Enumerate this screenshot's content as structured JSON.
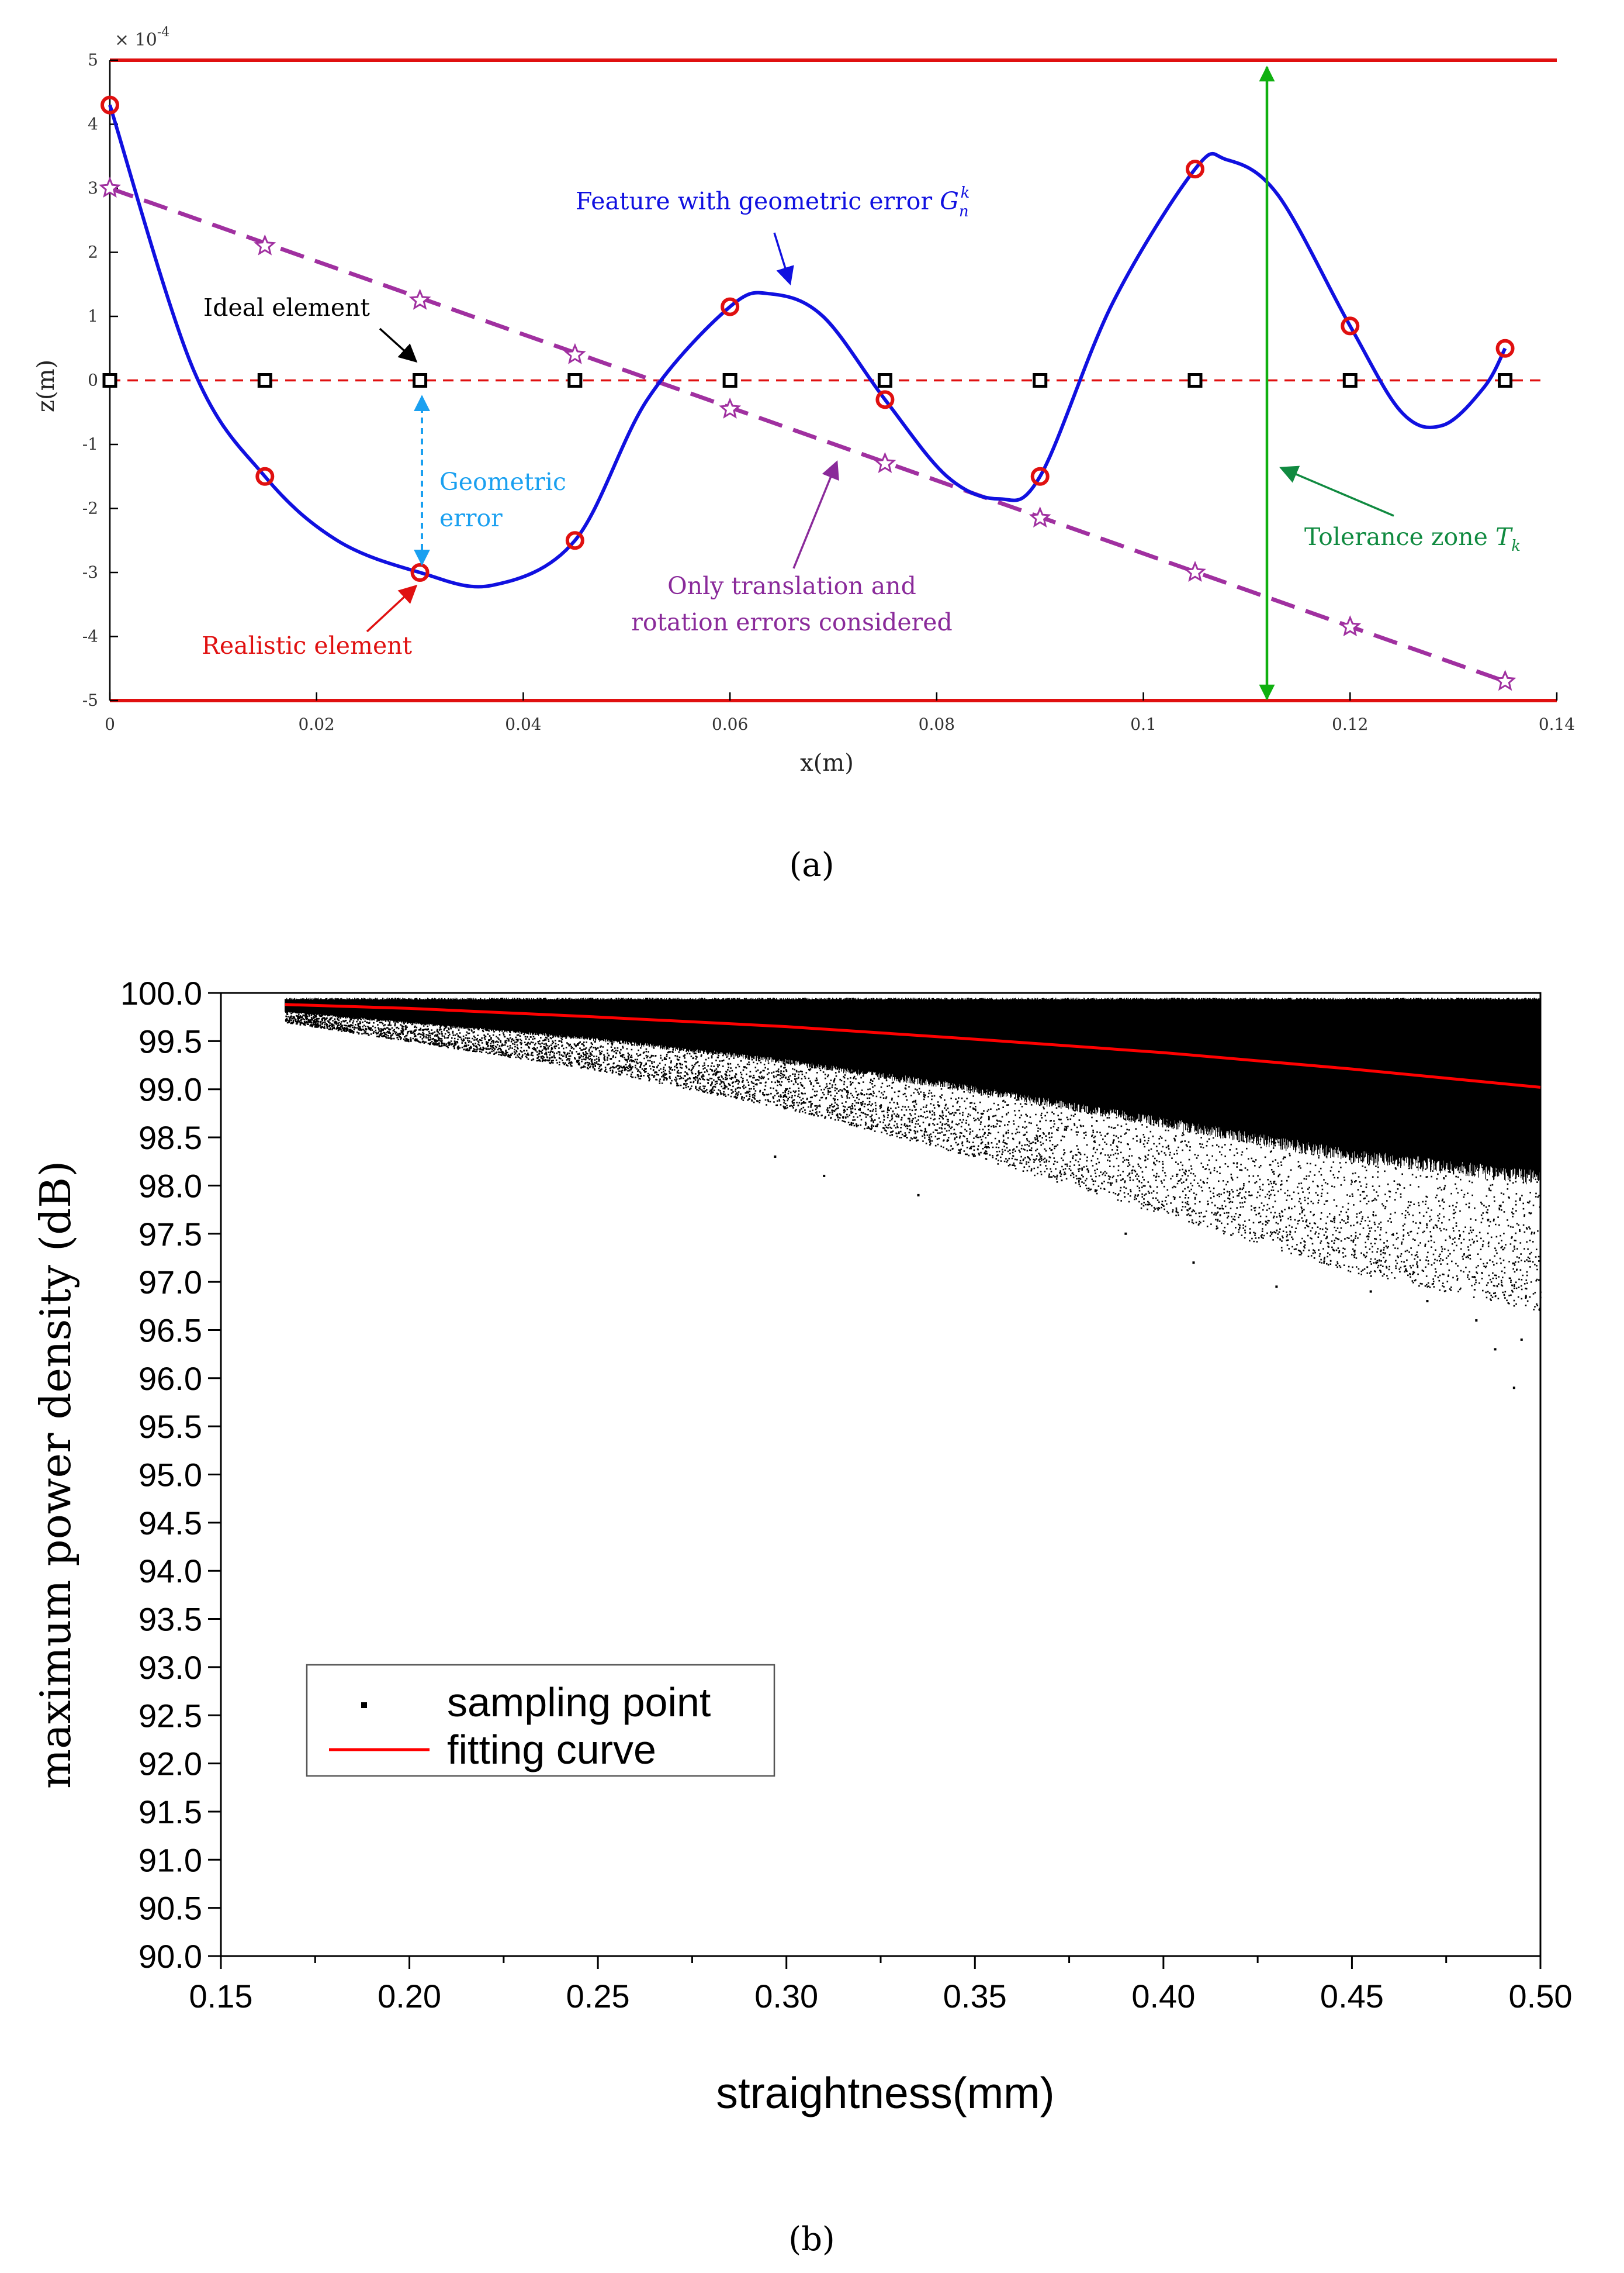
{
  "chart_data": [
    {
      "type": "line",
      "caption": "(a)",
      "xlabel": "x(m)",
      "ylabel": "z(m)",
      "y_exponent": "× 10",
      "y_exponent_power": "-4",
      "xlim": [
        0,
        0.14
      ],
      "ylim": [
        -5,
        5
      ],
      "x_ticks": [
        0,
        0.02,
        0.04,
        0.06,
        0.08,
        0.1,
        0.12,
        0.14
      ],
      "x_tick_labels": [
        "0",
        "0.02",
        "0.04",
        "0.06",
        "0.08",
        "0.1",
        "0.12",
        "0.14"
      ],
      "y_ticks": [
        -5,
        -4,
        -3,
        -2,
        -1,
        0,
        1,
        2,
        3,
        4,
        5
      ],
      "y_tick_labels": [
        "-5",
        "-4",
        "-3",
        "-2",
        "-1",
        "0",
        "1",
        "2",
        "3",
        "4",
        "5"
      ],
      "tolerance_bounds": [
        5,
        -5
      ],
      "series": [
        {
          "name": "Feature with geometric error",
          "style": "solid",
          "color": "#1010e0",
          "x": [
            0,
            0.008,
            0.015,
            0.022,
            0.03,
            0.037,
            0.045,
            0.052,
            0.06,
            0.064,
            0.069,
            0.075,
            0.081,
            0.086,
            0.09,
            0.097,
            0.105,
            0.108,
            0.113,
            0.12,
            0.125,
            0.129,
            0.133,
            0.135
          ],
          "y": [
            4.3,
            0.2,
            -1.5,
            -2.5,
            -3.0,
            -3.2,
            -2.5,
            -0.3,
            1.15,
            1.35,
            1.0,
            -0.3,
            -1.5,
            -1.85,
            -1.5,
            1.2,
            3.3,
            3.45,
            2.9,
            0.85,
            -0.5,
            -0.7,
            -0.1,
            0.5
          ]
        },
        {
          "name": "Realistic element",
          "style": "markers-circle",
          "color": "#e01010",
          "x": [
            0,
            0.015,
            0.03,
            0.045,
            0.06,
            0.075,
            0.09,
            0.105,
            0.12,
            0.135
          ],
          "y": [
            4.3,
            -1.5,
            -3.0,
            -2.5,
            1.15,
            -0.3,
            -1.5,
            3.3,
            0.85,
            0.5
          ]
        },
        {
          "name": "Ideal element",
          "style": "markers-square",
          "color": "#000000",
          "x": [
            0,
            0.015,
            0.03,
            0.045,
            0.06,
            0.075,
            0.09,
            0.105,
            0.12,
            0.135
          ],
          "y": [
            0,
            0,
            0,
            0,
            0,
            0,
            0,
            0,
            0,
            0
          ]
        },
        {
          "name": "Only translation and rotation errors considered",
          "style": "dashed-stars",
          "color": "#a030a0",
          "x": [
            0,
            0.015,
            0.03,
            0.045,
            0.06,
            0.075,
            0.09,
            0.105,
            0.12,
            0.135
          ],
          "y": [
            3.0,
            2.1,
            1.25,
            0.4,
            -0.45,
            -1.3,
            -2.15,
            -3.0,
            -3.85,
            -4.7
          ]
        }
      ],
      "annotations": {
        "feature_label": "Feature with geometric error",
        "feature_symbol": "G",
        "feature_sub": "n",
        "feature_sup": "k",
        "ideal_label": "Ideal element",
        "geometric_error_line1": "Geometric",
        "geometric_error_line2": "error",
        "realistic_label": "Realistic element",
        "only_line1": "Only translation and",
        "only_line2": "rotation errors considered",
        "tolerance_label": "Tolerance zone",
        "tolerance_symbol": "T",
        "tolerance_sub": "k"
      },
      "annotation_colors": {
        "feature": "#1010e0",
        "ideal": "#000000",
        "geometric": "#1aa0f0",
        "realistic": "#e01010",
        "only": "#8a2a9a",
        "tolerance": "#10b010",
        "tolerance_text": "#108a40"
      }
    },
    {
      "type": "scatter",
      "caption": "(b)",
      "xlabel": "straightness(mm)",
      "ylabel": "maximum power density (dB)",
      "xlim": [
        0.15,
        0.5
      ],
      "ylim": [
        90.0,
        100.0
      ],
      "x_ticks": [
        0.15,
        0.2,
        0.25,
        0.3,
        0.35,
        0.4,
        0.45,
        0.5
      ],
      "x_tick_labels": [
        "0.15",
        "0.20",
        "0.25",
        "0.30",
        "0.35",
        "0.40",
        "0.45",
        "0.50"
      ],
      "y_ticks": [
        90.0,
        90.5,
        91.0,
        91.5,
        92.0,
        92.5,
        93.0,
        93.5,
        94.0,
        94.5,
        95.0,
        95.5,
        96.0,
        96.5,
        97.0,
        97.5,
        98.0,
        98.5,
        99.0,
        99.5,
        100.0
      ],
      "y_tick_labels": [
        "90.0",
        "90.5",
        "91.0",
        "91.5",
        "92.0",
        "92.5",
        "93.0",
        "93.5",
        "94.0",
        "94.5",
        "95.0",
        "95.5",
        "96.0",
        "96.5",
        "97.0",
        "97.5",
        "98.0",
        "98.5",
        "99.0",
        "99.5",
        "100.0"
      ],
      "legend": [
        "sampling point",
        "fitting curve"
      ],
      "legend_position": "lower-left",
      "scatter_x_range": [
        0.167,
        0.5
      ],
      "scatter_upper": 99.95,
      "scatter_lower_envelope": {
        "x": [
          0.167,
          0.2,
          0.25,
          0.3,
          0.35,
          0.4,
          0.45,
          0.5
        ],
        "y": [
          99.7,
          99.5,
          99.2,
          98.8,
          98.3,
          97.7,
          97.1,
          96.7
        ]
      },
      "scatter_outliers": {
        "x": [
          0.493,
          0.488,
          0.495,
          0.483,
          0.47,
          0.455,
          0.43,
          0.408,
          0.39,
          0.335,
          0.31,
          0.297
        ],
        "y": [
          95.9,
          96.3,
          96.4,
          96.6,
          96.8,
          96.9,
          96.95,
          97.2,
          97.5,
          97.9,
          98.1,
          98.3
        ]
      },
      "series": [
        {
          "name": "fitting curve",
          "color": "#ff0000",
          "x": [
            0.167,
            0.2,
            0.25,
            0.3,
            0.35,
            0.4,
            0.45,
            0.5
          ],
          "y": [
            99.88,
            99.84,
            99.75,
            99.65,
            99.52,
            99.38,
            99.21,
            99.02
          ]
        }
      ]
    }
  ]
}
